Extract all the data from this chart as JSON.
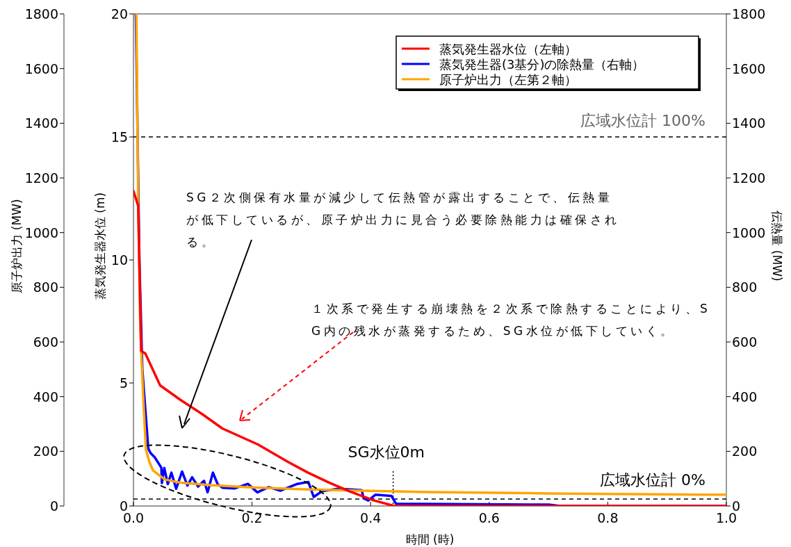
{
  "chart_data": {
    "type": "line",
    "xlabel": "時間 (時)",
    "ylabel": "蒸気発生器水位 (m)",
    "y2label": "伝熱量 (MW)",
    "y3label": "原子炉出力 (MW)",
    "xlim": [
      0,
      1
    ],
    "xticks": [
      {
        "value": 0,
        "label": "0.0"
      },
      {
        "value": 0.2,
        "label": "0.2"
      },
      {
        "value": 0.4,
        "label": "0.4"
      },
      {
        "value": 0.6,
        "label": "0.6"
      },
      {
        "value": 0.8,
        "label": "0.8"
      },
      {
        "value": 1,
        "label": "1.0"
      }
    ],
    "ylim": [
      0,
      20
    ],
    "yticks": [
      0,
      5,
      10,
      15,
      20
    ],
    "y2lim": [
      0,
      1800
    ],
    "y2ticks": [
      0,
      200,
      400,
      600,
      800,
      1000,
      1200,
      1400,
      1600,
      1800
    ],
    "y3lim": [
      0,
      1800
    ],
    "y3ticks": [
      0,
      200,
      400,
      600,
      800,
      1000,
      1200,
      1400,
      1600,
      1800
    ],
    "legend": "top right",
    "series": [
      {
        "name": "蒸気発生器(3基分)の除熱量（右軸）",
        "color": "#0000ff",
        "axis": "y2",
        "x": [
          0.004,
          0.01,
          0.015,
          0.021,
          0.025,
          0.029,
          0.036,
          0.047,
          0.048,
          0.052,
          0.058,
          0.064,
          0.072,
          0.082,
          0.091,
          0.099,
          0.109,
          0.119,
          0.125,
          0.134,
          0.142,
          0.15,
          0.17,
          0.193,
          0.209,
          0.228,
          0.248,
          0.275,
          0.295,
          0.304,
          0.318,
          0.345,
          0.385,
          0.388,
          0.396,
          0.408,
          0.435,
          0.443,
          0.7,
          0.72,
          1.0
        ],
        "values": [
          1800,
          900,
          500,
          325,
          210,
          193,
          178,
          140,
          84,
          139,
          80,
          122,
          63,
          126,
          75,
          105,
          71,
          92,
          50,
          122,
          80,
          67,
          64,
          81,
          50,
          69,
          56,
          80,
          88,
          33,
          54,
          63,
          58,
          29,
          20,
          41,
          37,
          8,
          5,
          0,
          0
        ]
      },
      {
        "name": "原子炉出力（左第２軸）",
        "color": "#ffa500",
        "axis": "y3",
        "x": [
          0.005,
          0.008,
          0.011,
          0.013,
          0.017,
          0.021,
          0.027,
          0.033,
          0.053,
          0.08,
          0.13,
          0.2,
          0.287,
          0.4,
          0.5,
          0.7,
          1.0
        ],
        "values": [
          1800,
          1100,
          700,
          567,
          376,
          206,
          160,
          130,
          97,
          85,
          76,
          68,
          61,
          55,
          51,
          46,
          41
        ]
      },
      {
        "name": "蒸気発生器水位（左軸）",
        "color": "#ff0000",
        "axis": "y",
        "x": [
          0,
          0.008,
          0.013,
          0.02,
          0.045,
          0.08,
          0.115,
          0.15,
          0.21,
          0.26,
          0.294,
          0.33,
          0.365,
          0.405,
          0.44,
          1.0
        ],
        "values": [
          12.8,
          12.2,
          6.3,
          6.2,
          4.9,
          4.3,
          3.75,
          3.15,
          2.5,
          1.8,
          1.36,
          0.95,
          0.59,
          0.23,
          0,
          0
        ]
      }
    ],
    "ref_lines": [
      {
        "axis": "y",
        "value": 15,
        "label": "広域水位計 100%",
        "line_style": "dashed",
        "color": "#000000"
      },
      {
        "axis": "y",
        "value": 0.28,
        "label": "広域水位計 0%",
        "line_style": "dashed",
        "color": "#000000"
      },
      {
        "axis": "x",
        "value": 0.438,
        "label": "SG水位0m",
        "line_style": "dotted",
        "color": "#000000"
      }
    ],
    "annotations": [
      "SG２次側保有水量が減少して伝熱管が露出することで、伝熱量が低下しているが、原子炉出力に見合う必要除熱能力は確保される。",
      "１次系で発生する崩壊熱を２次系で除熱することにより、SG内の残水が蒸発するため、SG水位が低下していく。"
    ]
  }
}
